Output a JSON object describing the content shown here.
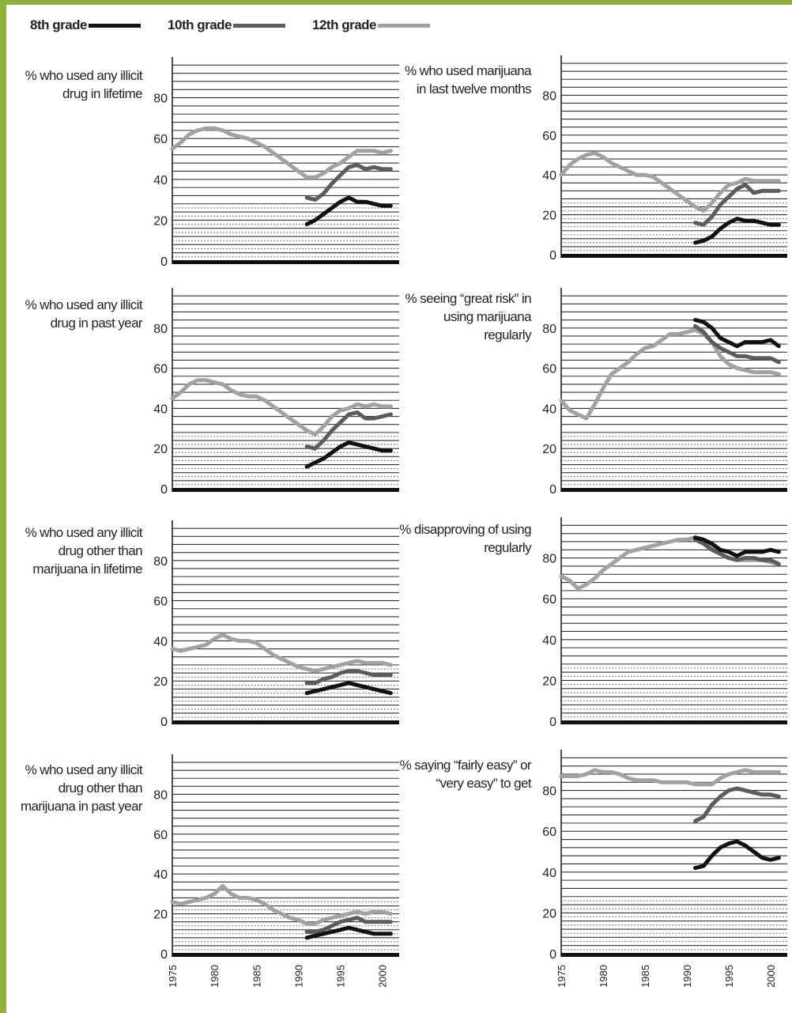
{
  "colors": {
    "8th grade": "#111111",
    "10th grade": "#5c5c5c",
    "12th grade": "#a2a2a2",
    "frame_bg": "#8fb33a"
  },
  "legend": [
    {
      "label": "8th grade"
    },
    {
      "label": "10th grade"
    },
    {
      "label": "12th grade"
    }
  ],
  "chart_data": [
    {
      "type": "line",
      "title": "% who used any illicit drug in lifetime",
      "ylim": [
        0,
        100
      ],
      "y_ticks": [
        "0",
        "20",
        "40",
        "60",
        "80"
      ],
      "xlim": [
        1975,
        2002
      ],
      "x_ticks": [
        "1975",
        "1980",
        "1985",
        "1990",
        "1995",
        "2000"
      ],
      "grid": true,
      "series": [
        {
          "name": "12th grade",
          "x": [
            1975,
            1976,
            1977,
            1978,
            1979,
            1980,
            1981,
            1982,
            1983,
            1984,
            1985,
            1986,
            1987,
            1988,
            1989,
            1990,
            1991,
            1992,
            1993,
            1994,
            1995,
            1996,
            1997,
            1998,
            1999,
            2000,
            2001
          ],
          "y": [
            55,
            58,
            62,
            64,
            65,
            65,
            64,
            62,
            61,
            60,
            58,
            56,
            53,
            50,
            47,
            44,
            41,
            41,
            43,
            46,
            48,
            51,
            54,
            54,
            54,
            53,
            54
          ]
        },
        {
          "name": "10th grade",
          "x": [
            1991,
            1992,
            1993,
            1994,
            1995,
            1996,
            1997,
            1998,
            1999,
            2000,
            2001
          ],
          "y": [
            31,
            30,
            33,
            38,
            42,
            46,
            47,
            45,
            46,
            45,
            45
          ]
        },
        {
          "name": "8th grade",
          "x": [
            1991,
            1992,
            1993,
            1994,
            1995,
            1996,
            1997,
            1998,
            1999,
            2000,
            2001
          ],
          "y": [
            18,
            20,
            23,
            26,
            29,
            31,
            29,
            29,
            28,
            27,
            27
          ]
        }
      ]
    },
    {
      "type": "line",
      "title": "% who used marijuana in last twelve months",
      "ylim": [
        0,
        100
      ],
      "y_ticks": [
        "0",
        "20",
        "40",
        "60",
        "80"
      ],
      "xlim": [
        1975,
        2002
      ],
      "x_ticks": [
        "1975",
        "1980",
        "1985",
        "1990",
        "1995",
        "2000"
      ],
      "grid": true,
      "series": [
        {
          "name": "12th grade",
          "x": [
            1975,
            1976,
            1977,
            1978,
            1979,
            1980,
            1981,
            1982,
            1983,
            1984,
            1985,
            1986,
            1987,
            1988,
            1989,
            1990,
            1991,
            1992,
            1993,
            1994,
            1995,
            1996,
            1997,
            1998,
            1999,
            2000,
            2001
          ],
          "y": [
            40,
            45,
            48,
            50,
            51,
            49,
            46,
            44,
            42,
            40,
            40,
            39,
            36,
            33,
            30,
            27,
            24,
            22,
            26,
            31,
            35,
            36,
            38,
            37,
            37,
            37,
            37
          ]
        },
        {
          "name": "10th grade",
          "x": [
            1991,
            1992,
            1993,
            1994,
            1995,
            1996,
            1997,
            1998,
            1999,
            2000,
            2001
          ],
          "y": [
            16,
            15,
            19,
            25,
            29,
            33,
            35,
            31,
            32,
            32,
            32
          ]
        },
        {
          "name": "8th grade",
          "x": [
            1991,
            1992,
            1993,
            1994,
            1995,
            1996,
            1997,
            1998,
            1999,
            2000,
            2001
          ],
          "y": [
            6,
            7,
            9,
            13,
            16,
            18,
            17,
            17,
            16,
            15,
            15
          ]
        }
      ]
    },
    {
      "type": "line",
      "title": "% who used any illicit drug in past year",
      "ylim": [
        0,
        100
      ],
      "y_ticks": [
        "0",
        "20",
        "40",
        "60",
        "80"
      ],
      "xlim": [
        1975,
        2002
      ],
      "x_ticks": [
        "1975",
        "1980",
        "1985",
        "1990",
        "1995",
        "2000"
      ],
      "grid": true,
      "series": [
        {
          "name": "12th grade",
          "x": [
            1975,
            1976,
            1977,
            1978,
            1979,
            1980,
            1981,
            1982,
            1983,
            1984,
            1985,
            1986,
            1987,
            1988,
            1989,
            1990,
            1991,
            1992,
            1993,
            1994,
            1995,
            1996,
            1997,
            1998,
            1999,
            2000,
            2001
          ],
          "y": [
            45,
            48,
            52,
            54,
            54,
            53,
            52,
            49,
            47,
            46,
            46,
            44,
            41,
            38,
            35,
            32,
            29,
            27,
            31,
            36,
            39,
            40,
            42,
            41,
            42,
            41,
            41
          ]
        },
        {
          "name": "10th grade",
          "x": [
            1991,
            1992,
            1993,
            1994,
            1995,
            1996,
            1997,
            1998,
            1999,
            2000,
            2001
          ],
          "y": [
            21,
            20,
            24,
            29,
            33,
            37,
            38,
            35,
            35,
            36,
            37
          ]
        },
        {
          "name": "8th grade",
          "x": [
            1991,
            1992,
            1993,
            1994,
            1995,
            1996,
            1997,
            1998,
            1999,
            2000,
            2001
          ],
          "y": [
            11,
            13,
            15,
            18,
            21,
            23,
            22,
            21,
            20,
            19,
            19
          ]
        }
      ]
    },
    {
      "type": "line",
      "title": "% seeing “great risk” in using marijuana regularly",
      "ylim": [
        0,
        100
      ],
      "y_ticks": [
        "0",
        "20",
        "40",
        "60",
        "80"
      ],
      "xlim": [
        1975,
        2002
      ],
      "x_ticks": [
        "1975",
        "1980",
        "1985",
        "1990",
        "1995",
        "2000"
      ],
      "grid": true,
      "series": [
        {
          "name": "12th grade",
          "x": [
            1975,
            1976,
            1977,
            1978,
            1979,
            1980,
            1981,
            1982,
            1983,
            1984,
            1985,
            1986,
            1987,
            1988,
            1989,
            1990,
            1991,
            1992,
            1993,
            1994,
            1995,
            1996,
            1997,
            1998,
            1999,
            2000,
            2001
          ],
          "y": [
            44,
            39,
            37,
            35,
            42,
            50,
            57,
            60,
            63,
            67,
            70,
            71,
            74,
            77,
            77,
            78,
            79,
            77,
            73,
            66,
            62,
            60,
            59,
            58,
            58,
            58,
            57
          ]
        },
        {
          "name": "10th grade",
          "x": [
            1991,
            1992,
            1993,
            1994,
            1995,
            1996,
            1997,
            1998,
            1999,
            2000,
            2001
          ],
          "y": [
            81,
            78,
            73,
            70,
            68,
            66,
            66,
            65,
            65,
            65,
            63
          ]
        },
        {
          "name": "8th grade",
          "x": [
            1991,
            1992,
            1993,
            1994,
            1995,
            1996,
            1997,
            1998,
            1999,
            2000,
            2001
          ],
          "y": [
            84,
            83,
            80,
            75,
            73,
            71,
            73,
            73,
            73,
            74,
            71
          ]
        }
      ]
    },
    {
      "type": "line",
      "title": "% who used any illicit drug other than marijuana in lifetime",
      "ylim": [
        0,
        100
      ],
      "y_ticks": [
        "0",
        "20",
        "40",
        "60",
        "80"
      ],
      "xlim": [
        1975,
        2002
      ],
      "x_ticks": [
        "1975",
        "1980",
        "1985",
        "1990",
        "1995",
        "2000"
      ],
      "grid": true,
      "series": [
        {
          "name": "12th grade",
          "x": [
            1975,
            1976,
            1977,
            1978,
            1979,
            1980,
            1981,
            1982,
            1983,
            1984,
            1985,
            1986,
            1987,
            1988,
            1989,
            1990,
            1991,
            1992,
            1993,
            1994,
            1995,
            1996,
            1997,
            1998,
            1999,
            2000,
            2001
          ],
          "y": [
            36,
            35,
            36,
            37,
            38,
            41,
            43,
            41,
            40,
            40,
            39,
            36,
            33,
            31,
            29,
            27,
            26,
            25,
            26,
            27,
            28,
            29,
            30,
            29,
            29,
            29,
            28
          ]
        },
        {
          "name": "10th grade",
          "x": [
            1991,
            1992,
            1993,
            1994,
            1995,
            1996,
            1997,
            1998,
            1999,
            2000,
            2001
          ],
          "y": [
            19,
            19,
            21,
            22,
            24,
            25,
            25,
            24,
            23,
            23,
            23
          ]
        },
        {
          "name": "8th grade",
          "x": [
            1991,
            1992,
            1993,
            1994,
            1995,
            1996,
            1997,
            1998,
            1999,
            2000,
            2001
          ],
          "y": [
            14,
            15,
            16,
            17,
            18,
            19,
            18,
            17,
            16,
            15,
            14
          ]
        }
      ]
    },
    {
      "type": "line",
      "title": "% disapproving of using regularly",
      "ylim": [
        0,
        100
      ],
      "y_ticks": [
        "0",
        "20",
        "40",
        "60",
        "80"
      ],
      "xlim": [
        1975,
        2002
      ],
      "x_ticks": [
        "1975",
        "1980",
        "1985",
        "1990",
        "1995",
        "2000"
      ],
      "grid": true,
      "series": [
        {
          "name": "12th grade",
          "x": [
            1975,
            1976,
            1977,
            1978,
            1979,
            1980,
            1981,
            1982,
            1983,
            1984,
            1985,
            1986,
            1987,
            1988,
            1989,
            1990,
            1991,
            1992,
            1993,
            1994,
            1995,
            1996,
            1997,
            1998,
            1999,
            2000,
            2001
          ],
          "y": [
            71,
            69,
            65,
            67,
            70,
            74,
            77,
            80,
            83,
            84,
            85,
            86,
            87,
            88,
            89,
            89,
            90,
            89,
            85,
            82,
            80,
            79,
            79,
            79,
            79,
            78,
            77
          ]
        },
        {
          "name": "10th grade",
          "x": [
            1991,
            1992,
            1993,
            1994,
            1995,
            1996,
            1997,
            1998,
            1999,
            2000,
            2001
          ],
          "y": [
            89,
            87,
            84,
            82,
            80,
            79,
            80,
            80,
            79,
            79,
            77
          ]
        },
        {
          "name": "8th grade",
          "x": [
            1991,
            1992,
            1993,
            1994,
            1995,
            1996,
            1997,
            1998,
            1999,
            2000,
            2001
          ],
          "y": [
            90,
            89,
            87,
            84,
            83,
            81,
            83,
            83,
            83,
            84,
            83
          ]
        }
      ]
    },
    {
      "type": "line",
      "title": "% who used any illicit drug other than marijuana in past year",
      "ylim": [
        0,
        100
      ],
      "y_ticks": [
        "0",
        "20",
        "40",
        "60",
        "80"
      ],
      "xlim": [
        1975,
        2002
      ],
      "x_ticks": [
        "1975",
        "1980",
        "1985",
        "1990",
        "1995",
        "2000"
      ],
      "grid": true,
      "series": [
        {
          "name": "12th grade",
          "x": [
            1975,
            1976,
            1977,
            1978,
            1979,
            1980,
            1981,
            1982,
            1983,
            1984,
            1985,
            1986,
            1987,
            1988,
            1989,
            1990,
            1991,
            1992,
            1993,
            1994,
            1995,
            1996,
            1997,
            1998,
            1999,
            2000,
            2001
          ],
          "y": [
            26,
            25,
            26,
            27,
            28,
            30,
            34,
            30,
            28,
            28,
            27,
            25,
            22,
            20,
            18,
            17,
            15,
            15,
            17,
            18,
            19,
            20,
            21,
            20,
            21,
            21,
            20
          ]
        },
        {
          "name": "10th grade",
          "x": [
            1991,
            1992,
            1993,
            1994,
            1995,
            1996,
            1997,
            1998,
            1999,
            2000,
            2001
          ],
          "y": [
            11,
            11,
            12,
            14,
            16,
            17,
            18,
            16,
            16,
            16,
            16
          ]
        },
        {
          "name": "8th grade",
          "x": [
            1991,
            1992,
            1993,
            1994,
            1995,
            1996,
            1997,
            1998,
            1999,
            2000,
            2001
          ],
          "y": [
            8,
            9,
            10,
            11,
            12,
            13,
            12,
            11,
            10,
            10,
            10
          ]
        }
      ]
    },
    {
      "type": "line",
      "title": "% saying “fairly easy” or “very easy” to get",
      "ylim": [
        0,
        100
      ],
      "y_ticks": [
        "0",
        "20",
        "40",
        "60",
        "80"
      ],
      "xlim": [
        1975,
        2002
      ],
      "x_ticks": [
        "1975",
        "1980",
        "1985",
        "1990",
        "1995",
        "2000"
      ],
      "grid": true,
      "series": [
        {
          "name": "12th grade",
          "x": [
            1975,
            1976,
            1977,
            1978,
            1979,
            1980,
            1981,
            1982,
            1983,
            1984,
            1985,
            1986,
            1987,
            1988,
            1989,
            1990,
            1991,
            1992,
            1993,
            1994,
            1995,
            1996,
            1997,
            1998,
            1999,
            2000,
            2001
          ],
          "y": [
            87,
            87,
            87,
            88,
            90,
            89,
            89,
            88,
            86,
            85,
            85,
            85,
            84,
            84,
            84,
            84,
            83,
            83,
            83,
            86,
            88,
            89,
            90,
            89,
            89,
            89,
            89
          ]
        },
        {
          "name": "10th grade",
          "x": [
            1991,
            1992,
            1993,
            1994,
            1995,
            1996,
            1997,
            1998,
            1999,
            2000,
            2001
          ],
          "y": [
            65,
            67,
            73,
            77,
            80,
            81,
            80,
            79,
            78,
            78,
            77
          ]
        },
        {
          "name": "8th grade",
          "x": [
            1991,
            1992,
            1993,
            1994,
            1995,
            1996,
            1997,
            1998,
            1999,
            2000,
            2001
          ],
          "y": [
            42,
            43,
            48,
            52,
            54,
            55,
            53,
            50,
            47,
            46,
            47
          ]
        }
      ]
    }
  ]
}
